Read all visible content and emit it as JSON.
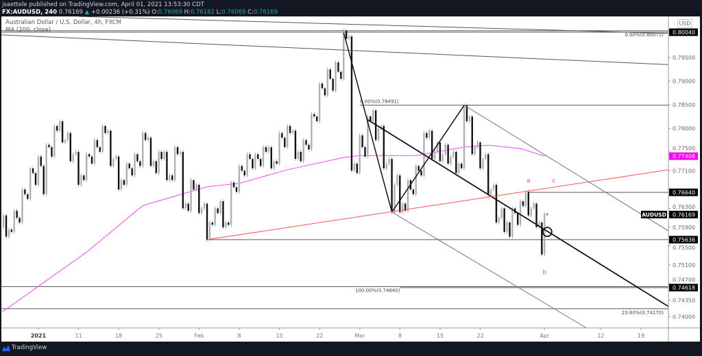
{
  "header": {
    "published": "jsaettele published on TradingView.com, April 01, 2021 13:53:30 CDT",
    "symbol": "FX:AUDUSD, 240",
    "last": "0.76169",
    "change": "+0.00236 (+0.31%)",
    "o_label": "O:",
    "o": "0.76069",
    "h_label": "H:",
    "h": "0.76182",
    "l_label": "L:",
    "l": "0.76069",
    "c_label": "C:",
    "c": "0.76169"
  },
  "legend": {
    "title": "Australian Dollar / U.S. Dollar, 4h, FXCM",
    "indicator": "MA (200, close)"
  },
  "currency_button": "USD",
  "footer": {
    "brand": "TradingView"
  },
  "colors": {
    "background": "#131722",
    "up_change": "#26a69a",
    "ma": "#ff40ff",
    "support_line": "#ff5050",
    "annotation": "#e040e0",
    "candle_down": "#111111",
    "candle_up": "#b0b0b0"
  },
  "chart_data": {
    "type": "candlestick",
    "symbol": "AUDUSD",
    "timeframe": "4h",
    "ylim": [
      0.738,
      0.806
    ],
    "y_ticks": [
      "0.79500",
      "0.79000",
      "0.78500",
      "0.78000",
      "0.77500",
      "0.77100",
      "0.76300",
      "0.75900",
      "0.75500",
      "0.75100",
      "0.74700",
      "0.74350",
      "0.74000"
    ],
    "x_ticks": [
      {
        "label": "2021",
        "date": "2021-01-04",
        "bold": true
      },
      {
        "label": "11",
        "date": "2021-01-11"
      },
      {
        "label": "18",
        "date": "2021-01-18"
      },
      {
        "label": "25",
        "date": "2021-01-25"
      },
      {
        "label": "Feb",
        "date": "2021-02-01"
      },
      {
        "label": "8",
        "date": "2021-02-08"
      },
      {
        "label": "15",
        "date": "2021-02-15"
      },
      {
        "label": "22",
        "date": "2021-02-22"
      },
      {
        "label": "Mar",
        "date": "2021-03-01"
      },
      {
        "label": "8",
        "date": "2021-03-08"
      },
      {
        "label": "15",
        "date": "2021-03-15"
      },
      {
        "label": "22",
        "date": "2021-03-22"
      },
      {
        "label": "Apr",
        "date": "2021-04-01"
      },
      {
        "label": "12",
        "date": "2021-04-12"
      },
      {
        "label": "19",
        "date": "2021-04-19"
      }
    ],
    "price_badges": [
      {
        "value": "0.80040",
        "bg": "#000000",
        "fg": "#ffffff"
      },
      {
        "value": "0.77408",
        "bg": "#ff00ff",
        "fg": "#ffffff"
      },
      {
        "value": "0.76640",
        "bg": "#000000",
        "fg": "#ffffff"
      },
      {
        "value": "0.76169",
        "bg": "#000000",
        "fg": "#ffffff",
        "tag": "AUDUSD"
      },
      {
        "value": "0.75636",
        "bg": "#000000",
        "fg": "#ffffff"
      },
      {
        "value": "0.74618",
        "bg": "#000000",
        "fg": "#ffffff"
      }
    ],
    "ohlc_daily": [
      [
        "2020-12-28",
        0.759,
        0.7615,
        0.757,
        0.7585
      ],
      [
        "2020-12-29",
        0.7585,
        0.7625,
        0.758,
        0.761
      ],
      [
        "2020-12-30",
        0.761,
        0.767,
        0.76,
        0.766
      ],
      [
        "2020-12-31",
        0.766,
        0.7715,
        0.765,
        0.7705
      ],
      [
        "2021-01-04",
        0.7705,
        0.774,
        0.768,
        0.772
      ],
      [
        "2021-01-05",
        0.772,
        0.7765,
        0.766,
        0.776
      ],
      [
        "2021-01-06",
        0.776,
        0.7805,
        0.774,
        0.7795
      ],
      [
        "2021-01-07",
        0.7795,
        0.7815,
        0.777,
        0.7775
      ],
      [
        "2021-01-08",
        0.7775,
        0.779,
        0.773,
        0.7745
      ],
      [
        "2021-01-11",
        0.7745,
        0.775,
        0.768,
        0.77
      ],
      [
        "2021-01-12",
        0.77,
        0.7745,
        0.769,
        0.774
      ],
      [
        "2021-01-13",
        0.774,
        0.7775,
        0.7725,
        0.776
      ],
      [
        "2021-01-14",
        0.776,
        0.7805,
        0.775,
        0.779
      ],
      [
        "2021-01-15",
        0.779,
        0.7795,
        0.772,
        0.7735
      ],
      [
        "2021-01-18",
        0.7735,
        0.774,
        0.767,
        0.769
      ],
      [
        "2021-01-19",
        0.769,
        0.7725,
        0.768,
        0.7715
      ],
      [
        "2021-01-20",
        0.7715,
        0.7745,
        0.77,
        0.773
      ],
      [
        "2021-01-21",
        0.773,
        0.779,
        0.772,
        0.7775
      ],
      [
        "2021-01-22",
        0.7775,
        0.778,
        0.772,
        0.773
      ],
      [
        "2021-01-25",
        0.773,
        0.775,
        0.7705,
        0.7735
      ],
      [
        "2021-01-26",
        0.7735,
        0.775,
        0.769,
        0.77
      ],
      [
        "2021-01-27",
        0.77,
        0.776,
        0.769,
        0.7745
      ],
      [
        "2021-01-28",
        0.7745,
        0.775,
        0.763,
        0.764
      ],
      [
        "2021-01-29",
        0.764,
        0.769,
        0.7625,
        0.767
      ],
      [
        "2021-02-01",
        0.767,
        0.768,
        0.762,
        0.763
      ],
      [
        "2021-02-02",
        0.763,
        0.764,
        0.7563,
        0.76
      ],
      [
        "2021-02-03",
        0.76,
        0.763,
        0.7595,
        0.762
      ],
      [
        "2021-02-04",
        0.762,
        0.7645,
        0.759,
        0.76
      ],
      [
        "2021-02-05",
        0.76,
        0.7685,
        0.7595,
        0.7675
      ],
      [
        "2021-02-08",
        0.7675,
        0.772,
        0.7665,
        0.771
      ],
      [
        "2021-02-09",
        0.771,
        0.7745,
        0.77,
        0.7735
      ],
      [
        "2021-02-10",
        0.7735,
        0.7745,
        0.7715,
        0.7735
      ],
      [
        "2021-02-11",
        0.7735,
        0.776,
        0.772,
        0.775
      ],
      [
        "2021-02-12",
        0.775,
        0.776,
        0.7715,
        0.773
      ],
      [
        "2021-02-15",
        0.773,
        0.779,
        0.7725,
        0.778
      ],
      [
        "2021-02-16",
        0.778,
        0.7805,
        0.776,
        0.779
      ],
      [
        "2021-02-17",
        0.779,
        0.7795,
        0.7735,
        0.775
      ],
      [
        "2021-02-18",
        0.775,
        0.7775,
        0.773,
        0.7765
      ],
      [
        "2021-02-19",
        0.7765,
        0.783,
        0.7755,
        0.7825
      ],
      [
        "2021-02-22",
        0.7825,
        0.7895,
        0.7815,
        0.7885
      ],
      [
        "2021-02-23",
        0.7885,
        0.7925,
        0.787,
        0.7905
      ],
      [
        "2021-02-24",
        0.7905,
        0.794,
        0.788,
        0.792
      ],
      [
        "2021-02-25",
        0.792,
        0.8007,
        0.7905,
        0.799
      ],
      [
        "2021-02-26",
        0.799,
        0.7995,
        0.771,
        0.7725
      ],
      [
        "2021-03-01",
        0.7725,
        0.7785,
        0.7705,
        0.776
      ],
      [
        "2021-03-02",
        0.776,
        0.7825,
        0.774,
        0.7815
      ],
      [
        "2021-03-03",
        0.7815,
        0.7838,
        0.7775,
        0.78
      ],
      [
        "2021-03-04",
        0.78,
        0.7805,
        0.7715,
        0.7725
      ],
      [
        "2021-03-05",
        0.7725,
        0.7735,
        0.7622,
        0.768
      ],
      [
        "2021-03-08",
        0.768,
        0.77,
        0.7622,
        0.764
      ],
      [
        "2021-03-09",
        0.764,
        0.769,
        0.7625,
        0.767
      ],
      [
        "2021-03-10",
        0.767,
        0.772,
        0.766,
        0.771
      ],
      [
        "2021-03-11",
        0.771,
        0.779,
        0.77,
        0.778
      ],
      [
        "2021-03-12",
        0.778,
        0.7795,
        0.7735,
        0.775
      ],
      [
        "2021-03-15",
        0.775,
        0.777,
        0.773,
        0.7745
      ],
      [
        "2021-03-16",
        0.7745,
        0.7765,
        0.7725,
        0.774
      ],
      [
        "2021-03-17",
        0.774,
        0.775,
        0.7705,
        0.7725
      ],
      [
        "2021-03-18",
        0.7725,
        0.7849,
        0.7715,
        0.7815
      ],
      [
        "2021-03-19",
        0.7815,
        0.7825,
        0.7745,
        0.776
      ],
      [
        "2021-03-22",
        0.776,
        0.777,
        0.7715,
        0.7735
      ],
      [
        "2021-03-23",
        0.7735,
        0.7745,
        0.766,
        0.767
      ],
      [
        "2021-03-24",
        0.767,
        0.768,
        0.76,
        0.761
      ],
      [
        "2021-03-25",
        0.761,
        0.763,
        0.758,
        0.76
      ],
      [
        "2021-03-26",
        0.76,
        0.763,
        0.757,
        0.762
      ],
      [
        "2021-03-29",
        0.762,
        0.7645,
        0.7595,
        0.7635
      ],
      [
        "2021-03-30",
        0.7635,
        0.7665,
        0.7615,
        0.763
      ],
      [
        "2021-03-31",
        0.763,
        0.764,
        0.759,
        0.76
      ],
      [
        "2021-04-01",
        0.76,
        0.7618,
        0.7532,
        0.7617
      ]
    ],
    "ma200": [
      [
        "2020-12-28",
        0.7411
      ],
      [
        "2021-01-12",
        0.7537
      ],
      [
        "2021-01-21",
        0.7636
      ],
      [
        "2021-01-28",
        0.7661
      ],
      [
        "2021-02-02",
        0.7676
      ],
      [
        "2021-02-08",
        0.7683
      ],
      [
        "2021-02-16",
        0.7712
      ],
      [
        "2021-02-25",
        0.7738
      ],
      [
        "2021-03-01",
        0.7742
      ],
      [
        "2021-03-10",
        0.7742
      ],
      [
        "2021-03-18",
        0.776
      ],
      [
        "2021-03-23",
        0.7764
      ],
      [
        "2021-03-29",
        0.7757
      ],
      [
        "2021-04-01",
        0.7741
      ]
    ],
    "trendlines": [
      {
        "name": "upper-resistance-line",
        "p1": [
          "2021-01-04",
          0.804
        ],
        "p2": [
          "2021-04-01",
          0.8009
        ],
        "color": "#555555",
        "extend": "both"
      },
      {
        "name": "lower-resistance-line",
        "p1": [
          "2021-01-04",
          0.7995
        ],
        "p2": [
          "2021-04-01",
          0.7947
        ],
        "color": "#555555",
        "extend": "both"
      },
      {
        "name": "zigzag-leg-1",
        "p1": [
          "2021-02-25",
          0.8003
        ],
        "p2": [
          "2021-03-05",
          0.7622
        ],
        "color": "#111111",
        "extend": "none",
        "width": 1.5
      },
      {
        "name": "zigzag-leg-2",
        "p1": [
          "2021-03-05",
          0.7622
        ],
        "p2": [
          "2021-03-18",
          0.7849
        ],
        "color": "#111111",
        "extend": "none",
        "width": 1.5
      },
      {
        "name": "bold-trendline",
        "p1": [
          "2021-03-02",
          0.7818
        ],
        "p2": [
          "2021-04-01",
          0.7585
        ],
        "color": "#111111",
        "extend": "right",
        "width": 1.8
      },
      {
        "name": "channel-upper-line",
        "p1": [
          "2021-03-18",
          0.7849
        ],
        "p2": [
          "2021-04-01",
          0.7744
        ],
        "color": "#777777",
        "extend": "right"
      },
      {
        "name": "channel-lower-line",
        "p1": [
          "2021-03-05",
          0.7622
        ],
        "p2": [
          "2021-04-01",
          0.7429
        ],
        "color": "#777777",
        "extend": "right"
      },
      {
        "name": "red-support-line",
        "p1": [
          "2021-02-02",
          0.75636
        ],
        "p2": [
          "2021-03-05",
          0.7623
        ],
        "color": "#ff5050",
        "extend": "right"
      }
    ],
    "horizontals": [
      {
        "price": 0.80071,
        "from": null,
        "label": "0.00%(0.80071)",
        "label_align": "right"
      },
      {
        "price": 0.8004,
        "from": null
      },
      {
        "price": 0.78491,
        "from": "2021-03-01",
        "label": "0.00%(0.78491)",
        "label_align": "left"
      },
      {
        "price": 0.7664,
        "from": "2021-03-30"
      },
      {
        "price": 0.75636,
        "from": "2021-02-02"
      },
      {
        "price": 0.7464,
        "from": null,
        "label": "100.00%(0.74640)",
        "label_align": "mid"
      },
      {
        "price": 0.74618,
        "from": "2021-03-08"
      },
      {
        "price": 0.7417,
        "from": null,
        "label": "23.60%(0.74170)",
        "label_align": "right"
      }
    ],
    "annotations": [
      {
        "text": "a",
        "date": "2021-03-30",
        "price": 0.7685
      },
      {
        "text": "b",
        "date": "2021-04-01",
        "price": 0.749
      },
      {
        "text": "c",
        "date": "2021-04-02",
        "price": 0.7685
      }
    ],
    "marker_circle": {
      "date": "2021-04-01",
      "price": 0.758
    }
  }
}
